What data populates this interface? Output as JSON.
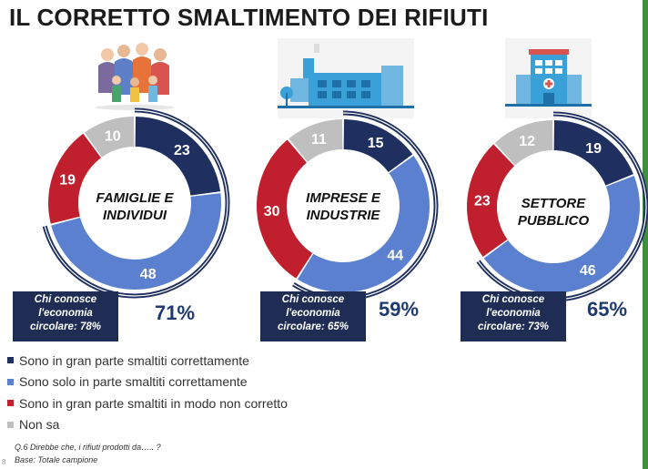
{
  "title": "IL CORRETTO SMALTIMENTO DEI RIFIUTI",
  "colors": {
    "dark_blue": "#1f3060",
    "light_blue": "#5a80cf",
    "red": "#c0202e",
    "gray": "#bfbfbf",
    "box": "#1f2d55",
    "pct_text": "#1f3a6e"
  },
  "chart_data": [
    {
      "type": "pie",
      "center_label": [
        "FAMIGLIE E",
        "INDIVIDUI"
      ],
      "categories": [
        "Sono in gran parte smaltiti correttamente",
        "Sono solo in parte smaltiti correttamente",
        "Sono in gran parte smaltiti in modo non corretto",
        "Non sa"
      ],
      "values": [
        23,
        48,
        19,
        10
      ],
      "outer_arc_percent": "71%",
      "box_lines": [
        "Chi conosce",
        "l'economia",
        "circolare: 78%"
      ]
    },
    {
      "type": "pie",
      "center_label": [
        "IMPRESE E",
        "INDUSTRIE"
      ],
      "categories": [
        "Sono in gran parte smaltiti correttamente",
        "Sono solo in parte smaltiti correttamente",
        "Sono in gran parte smaltiti in modo non corretto",
        "Non sa"
      ],
      "values": [
        15,
        44,
        30,
        11
      ],
      "outer_arc_percent": "59%",
      "box_lines": [
        "Chi conosce",
        "l'economia",
        "circolare: 65%"
      ]
    },
    {
      "type": "pie",
      "center_label": [
        "SETTORE",
        "PUBBLICO"
      ],
      "categories": [
        "Sono in gran parte smaltiti correttamente",
        "Sono solo in parte smaltiti correttamente",
        "Sono in gran parte smaltiti in modo non corretto",
        "Non sa"
      ],
      "values": [
        19,
        46,
        23,
        12
      ],
      "outer_arc_percent": "65%",
      "box_lines": [
        "Chi conosce",
        "l'economia",
        "circolare: 73%"
      ]
    }
  ],
  "legend": [
    {
      "label": "Sono in gran parte smaltiti correttamente",
      "color": "#1f3060"
    },
    {
      "label": "Sono solo in parte smaltiti correttamente",
      "color": "#5a80cf"
    },
    {
      "label": "Sono in gran parte smaltiti in modo non corretto",
      "color": "#c0202e"
    },
    {
      "label": "Non sa",
      "color": "#bfbfbf"
    }
  ],
  "footnote": {
    "question": "Q.6  Direbbe che, i rifiuti prodotti da….. ?",
    "base": "Base: Totale campione",
    "page": "8"
  },
  "illustrations": [
    "family-illustration",
    "factory-illustration",
    "hospital-illustration"
  ]
}
